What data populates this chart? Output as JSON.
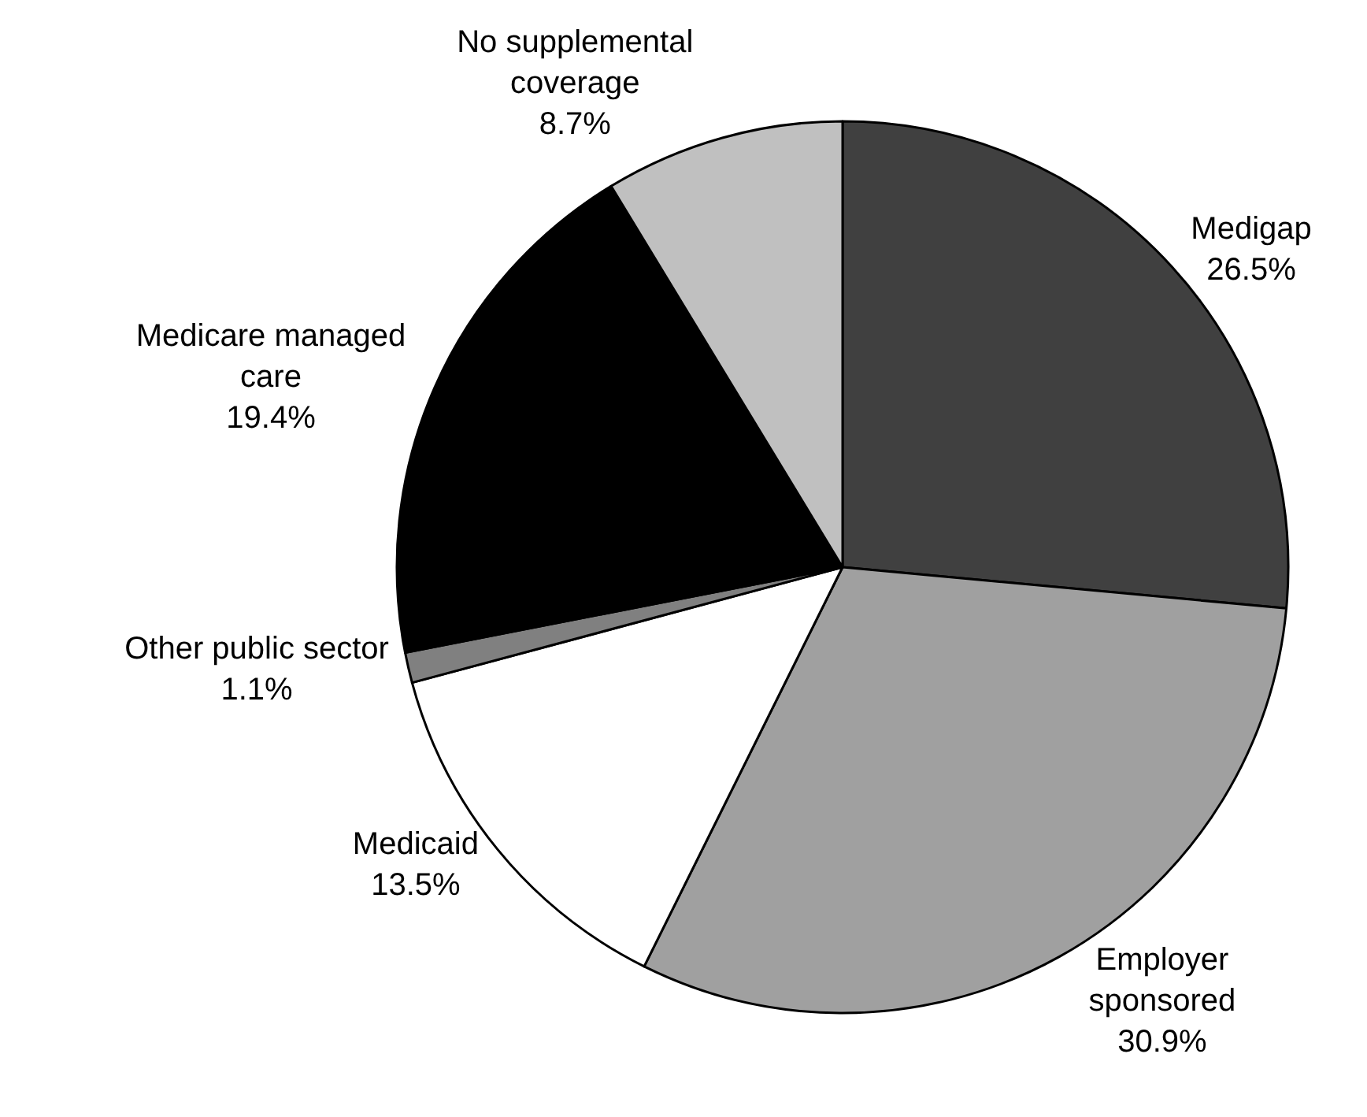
{
  "chart_data": {
    "type": "pie",
    "categories": [
      "Medigap",
      "Employer sponsored",
      "Medicaid",
      "Other public sector",
      "Medicare managed care",
      "No supplemental coverage"
    ],
    "values": [
      26.5,
      30.9,
      13.5,
      1.1,
      19.4,
      8.7
    ],
    "value_labels": [
      "26.5%",
      "30.9%",
      "13.5%",
      "1.1%",
      "19.4%",
      "8.7%"
    ],
    "colors": [
      "#404040",
      "#a0a0a0",
      "#ffffff",
      "#808080",
      "#000000",
      "#c0c0c0"
    ],
    "legend": false
  }
}
